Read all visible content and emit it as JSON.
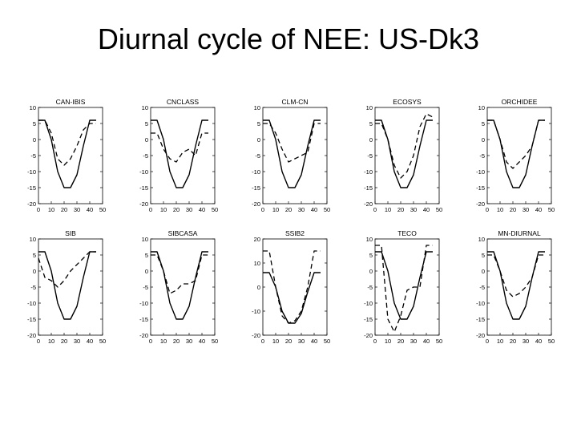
{
  "slide": {
    "title": "Diurnal cycle of NEE: US-Dk3"
  },
  "colors": {
    "line": "#000000",
    "background": "#ffffff"
  },
  "chart_data": [
    {
      "type": "line",
      "title": "CAN-IBIS",
      "x": [
        0,
        5,
        10,
        15,
        20,
        25,
        30,
        35,
        40,
        45
      ],
      "xlim": [
        0,
        50
      ],
      "ylim": [
        -20,
        10
      ],
      "yticks": [
        10,
        5,
        0,
        -5,
        -10,
        -15,
        -20
      ],
      "xticks": [
        0,
        10,
        20,
        30,
        40,
        50
      ],
      "grid": false,
      "series": [
        {
          "style": "solid",
          "values": [
            6,
            6,
            0,
            -10,
            -15,
            -15,
            -11,
            -2,
            6,
            6
          ]
        },
        {
          "style": "dashed",
          "values": [
            6,
            6,
            2,
            -6,
            -8,
            -6,
            -2,
            3,
            5,
            5
          ]
        }
      ]
    },
    {
      "type": "line",
      "title": "CNCLASS",
      "x": [
        0,
        5,
        10,
        15,
        20,
        25,
        30,
        35,
        40,
        45
      ],
      "xlim": [
        0,
        50
      ],
      "ylim": [
        -20,
        10
      ],
      "yticks": [
        10,
        5,
        0,
        -5,
        -10,
        -15,
        -20
      ],
      "xticks": [
        0,
        10,
        20,
        30,
        40,
        50
      ],
      "grid": false,
      "series": [
        {
          "style": "solid",
          "values": [
            6,
            6,
            0,
            -10,
            -15,
            -15,
            -11,
            -2,
            6,
            6
          ]
        },
        {
          "style": "dashed",
          "values": [
            2,
            2,
            -3,
            -6,
            -7,
            -4,
            -3,
            -5,
            2,
            2
          ]
        }
      ]
    },
    {
      "type": "line",
      "title": "CLM-CN",
      "x": [
        0,
        5,
        10,
        15,
        20,
        25,
        30,
        35,
        40,
        45
      ],
      "xlim": [
        0,
        50
      ],
      "ylim": [
        -20,
        10
      ],
      "yticks": [
        10,
        5,
        0,
        -5,
        -10,
        -15,
        -20
      ],
      "xticks": [
        0,
        10,
        20,
        30,
        40,
        50
      ],
      "grid": false,
      "series": [
        {
          "style": "solid",
          "values": [
            6,
            6,
            0,
            -10,
            -15,
            -15,
            -11,
            -2,
            6,
            6
          ]
        },
        {
          "style": "dashed",
          "values": [
            5,
            5,
            2,
            -3,
            -7,
            -6,
            -5,
            -4,
            5,
            5
          ]
        }
      ]
    },
    {
      "type": "line",
      "title": "ECOSYS",
      "x": [
        0,
        5,
        10,
        15,
        20,
        25,
        30,
        35,
        40,
        45
      ],
      "xlim": [
        0,
        50
      ],
      "ylim": [
        -20,
        10
      ],
      "yticks": [
        10,
        5,
        0,
        -5,
        -10,
        -15,
        -20
      ],
      "xticks": [
        0,
        10,
        20,
        30,
        40,
        50
      ],
      "grid": false,
      "series": [
        {
          "style": "solid",
          "values": [
            6,
            6,
            0,
            -10,
            -15,
            -15,
            -11,
            -2,
            6,
            6
          ]
        },
        {
          "style": "dashed",
          "values": [
            5,
            5,
            0,
            -8,
            -12,
            -10,
            -5,
            4,
            8,
            7
          ]
        }
      ]
    },
    {
      "type": "line",
      "title": "ORCHIDEE",
      "x": [
        0,
        5,
        10,
        15,
        20,
        25,
        30,
        35,
        40,
        45
      ],
      "xlim": [
        0,
        50
      ],
      "ylim": [
        -20,
        10
      ],
      "yticks": [
        10,
        5,
        0,
        -5,
        -10,
        -15,
        -20
      ],
      "xticks": [
        0,
        10,
        20,
        30,
        40,
        50
      ],
      "grid": false,
      "series": [
        {
          "style": "solid",
          "values": [
            6,
            6,
            0,
            -10,
            -15,
            -15,
            -11,
            -2,
            6,
            6
          ]
        },
        {
          "style": "dashed",
          "values": [
            6,
            6,
            0,
            -7,
            -9,
            -7,
            -5,
            -2,
            6,
            6
          ]
        }
      ]
    },
    {
      "type": "line",
      "title": "SIB",
      "x": [
        0,
        5,
        10,
        15,
        20,
        25,
        30,
        35,
        40,
        45
      ],
      "xlim": [
        0,
        50
      ],
      "ylim": [
        -20,
        10
      ],
      "yticks": [
        10,
        5,
        0,
        -5,
        -10,
        -15,
        -20
      ],
      "xticks": [
        0,
        10,
        20,
        30,
        40,
        50
      ],
      "grid": false,
      "series": [
        {
          "style": "solid",
          "values": [
            6,
            6,
            0,
            -10,
            -15,
            -15,
            -11,
            -2,
            6,
            6
          ]
        },
        {
          "style": "dashed",
          "values": [
            4,
            -2,
            -3,
            -5,
            -3,
            0,
            2,
            4,
            6,
            6
          ]
        }
      ]
    },
    {
      "type": "line",
      "title": "SIBCASA",
      "x": [
        0,
        5,
        10,
        15,
        20,
        25,
        30,
        35,
        40,
        45
      ],
      "xlim": [
        0,
        50
      ],
      "ylim": [
        -20,
        10
      ],
      "yticks": [
        10,
        5,
        0,
        -5,
        -10,
        -15,
        -20
      ],
      "xticks": [
        0,
        10,
        20,
        30,
        40,
        50
      ],
      "grid": false,
      "series": [
        {
          "style": "solid",
          "values": [
            6,
            6,
            0,
            -10,
            -15,
            -15,
            -11,
            -2,
            6,
            6
          ]
        },
        {
          "style": "dashed",
          "values": [
            5,
            5,
            0,
            -7,
            -6,
            -4,
            -4,
            -3,
            5,
            5
          ]
        }
      ]
    },
    {
      "type": "line",
      "title": "SSIB2",
      "x": [
        0,
        5,
        10,
        15,
        20,
        25,
        30,
        35,
        40,
        45
      ],
      "xlim": [
        0,
        50
      ],
      "ylim": [
        -20,
        20
      ],
      "yticks": [
        20,
        10,
        0,
        -10,
        -20
      ],
      "xticks": [
        0,
        10,
        20,
        30,
        40,
        50
      ],
      "grid": false,
      "series": [
        {
          "style": "solid",
          "values": [
            6,
            6,
            0,
            -10,
            -15,
            -15,
            -11,
            -2,
            6,
            6
          ]
        },
        {
          "style": "dashed",
          "values": [
            15,
            15,
            0,
            -12,
            -15,
            -14,
            -10,
            0,
            15,
            15
          ]
        }
      ]
    },
    {
      "type": "line",
      "title": "TECO",
      "x": [
        0,
        5,
        10,
        15,
        20,
        25,
        30,
        35,
        40,
        45
      ],
      "xlim": [
        0,
        50
      ],
      "ylim": [
        -20,
        10
      ],
      "yticks": [
        10,
        5,
        0,
        -5,
        -10,
        -15,
        -20
      ],
      "xticks": [
        0,
        10,
        20,
        30,
        40,
        50
      ],
      "grid": false,
      "series": [
        {
          "style": "solid",
          "values": [
            6,
            6,
            0,
            -10,
            -15,
            -15,
            -11,
            -2,
            6,
            6
          ]
        },
        {
          "style": "dashed",
          "values": [
            8,
            8,
            -15,
            -19,
            -14,
            -6,
            -5,
            -5,
            8,
            8
          ]
        }
      ]
    },
    {
      "type": "line",
      "title": "MN-DIURNAL",
      "x": [
        0,
        5,
        10,
        15,
        20,
        25,
        30,
        35,
        40,
        45
      ],
      "xlim": [
        0,
        50
      ],
      "ylim": [
        -20,
        10
      ],
      "yticks": [
        10,
        5,
        0,
        -5,
        -10,
        -15,
        -20
      ],
      "xticks": [
        0,
        10,
        20,
        30,
        40,
        50
      ],
      "grid": false,
      "series": [
        {
          "style": "solid",
          "values": [
            6,
            6,
            0,
            -10,
            -15,
            -15,
            -11,
            -2,
            6,
            6
          ]
        },
        {
          "style": "dashed",
          "values": [
            5,
            5,
            0,
            -6,
            -8,
            -7,
            -5,
            -2,
            5,
            5
          ]
        }
      ]
    }
  ]
}
